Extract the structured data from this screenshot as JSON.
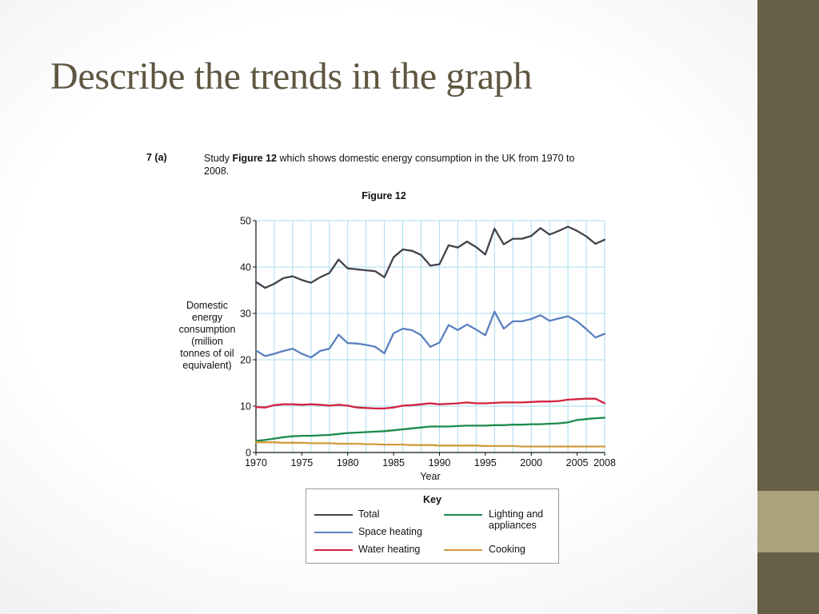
{
  "slide": {
    "title": "Describe the trends in the graph"
  },
  "question": {
    "number": "7  (a)",
    "text_prefix": "Study ",
    "text_figure": "Figure 12",
    "text_suffix": " which shows domestic energy consumption in the UK from 1970 to 2008."
  },
  "colors": {
    "sidebar": "#675f48",
    "sidebar_accent": "#a9a27d",
    "grid": "#a8dcf0",
    "total": "#45404b",
    "space_heating": "#5b80bf",
    "water_heating": "#d2233f",
    "lighting": "#1a8a4a",
    "cooking": "#d39b3c"
  },
  "chart_data": {
    "type": "line",
    "title": "Figure 12",
    "xlabel": "Year",
    "ylabel": "Domestic\nenergy\nconsumption\n(million\ntonnes of oil\nequivalent)",
    "xlim": [
      1970,
      2008
    ],
    "ylim": [
      0,
      50
    ],
    "xticks": [
      1970,
      1975,
      1980,
      1985,
      1990,
      1995,
      2000,
      2005,
      2008
    ],
    "yticks": [
      0,
      10,
      20,
      30,
      40,
      50
    ],
    "grid": true,
    "legend_title": "Key",
    "legend_position": "bottom",
    "x": [
      1970,
      1971,
      1972,
      1973,
      1974,
      1975,
      1976,
      1977,
      1978,
      1979,
      1980,
      1981,
      1982,
      1983,
      1984,
      1985,
      1986,
      1987,
      1988,
      1989,
      1990,
      1991,
      1992,
      1993,
      1994,
      1995,
      1996,
      1997,
      1998,
      1999,
      2000,
      2001,
      2002,
      2003,
      2004,
      2005,
      2006,
      2007,
      2008
    ],
    "series": [
      {
        "name": "Total",
        "color_key": "total",
        "values": [
          36.8,
          35.5,
          36.4,
          37.6,
          38.0,
          37.2,
          36.6,
          37.8,
          38.7,
          41.6,
          39.7,
          39.5,
          39.3,
          39.1,
          37.8,
          42.1,
          43.8,
          43.5,
          42.6,
          40.3,
          40.6,
          44.7,
          44.2,
          45.5,
          44.3,
          42.7,
          48.3,
          44.9,
          46.1,
          46.1,
          46.7,
          48.4,
          47.0,
          47.8,
          48.7,
          47.8,
          46.6,
          45.0,
          45.9
        ]
      },
      {
        "name": "Space heating",
        "color_key": "space_heating",
        "values": [
          22.0,
          20.8,
          21.3,
          21.9,
          22.4,
          21.3,
          20.5,
          21.9,
          22.4,
          25.4,
          23.6,
          23.5,
          23.2,
          22.8,
          21.4,
          25.7,
          26.7,
          26.4,
          25.3,
          22.8,
          23.7,
          27.5,
          26.4,
          27.6,
          26.5,
          25.3,
          30.4,
          26.7,
          28.3,
          28.3,
          28.8,
          29.6,
          28.4,
          28.9,
          29.4,
          28.3,
          26.6,
          24.8,
          25.6
        ]
      },
      {
        "name": "Water heating",
        "color_key": "water_heating",
        "values": [
          9.8,
          9.7,
          10.2,
          10.4,
          10.4,
          10.3,
          10.4,
          10.3,
          10.1,
          10.3,
          10.1,
          9.7,
          9.6,
          9.5,
          9.5,
          9.7,
          10.1,
          10.2,
          10.4,
          10.6,
          10.4,
          10.5,
          10.6,
          10.8,
          10.6,
          10.6,
          10.7,
          10.8,
          10.8,
          10.8,
          10.9,
          11.0,
          11.0,
          11.1,
          11.4,
          11.5,
          11.6,
          11.6,
          10.6
        ]
      },
      {
        "name": "Lighting and\nappliances",
        "color_key": "lighting",
        "values": [
          2.5,
          2.7,
          3.0,
          3.3,
          3.5,
          3.6,
          3.6,
          3.7,
          3.8,
          4.0,
          4.2,
          4.3,
          4.4,
          4.5,
          4.6,
          4.8,
          5.0,
          5.2,
          5.4,
          5.6,
          5.6,
          5.6,
          5.7,
          5.8,
          5.8,
          5.8,
          5.9,
          5.9,
          6.0,
          6.0,
          6.1,
          6.1,
          6.2,
          6.3,
          6.5,
          7.0,
          7.2,
          7.4,
          7.5
        ]
      },
      {
        "name": "Cooking",
        "color_key": "cooking",
        "values": [
          2.2,
          2.2,
          2.2,
          2.1,
          2.1,
          2.1,
          2.0,
          2.0,
          2.0,
          1.9,
          1.9,
          1.9,
          1.8,
          1.8,
          1.7,
          1.7,
          1.7,
          1.6,
          1.6,
          1.6,
          1.5,
          1.5,
          1.5,
          1.5,
          1.5,
          1.4,
          1.4,
          1.4,
          1.4,
          1.3,
          1.3,
          1.3,
          1.3,
          1.3,
          1.3,
          1.3,
          1.3,
          1.3,
          1.3
        ]
      }
    ]
  }
}
